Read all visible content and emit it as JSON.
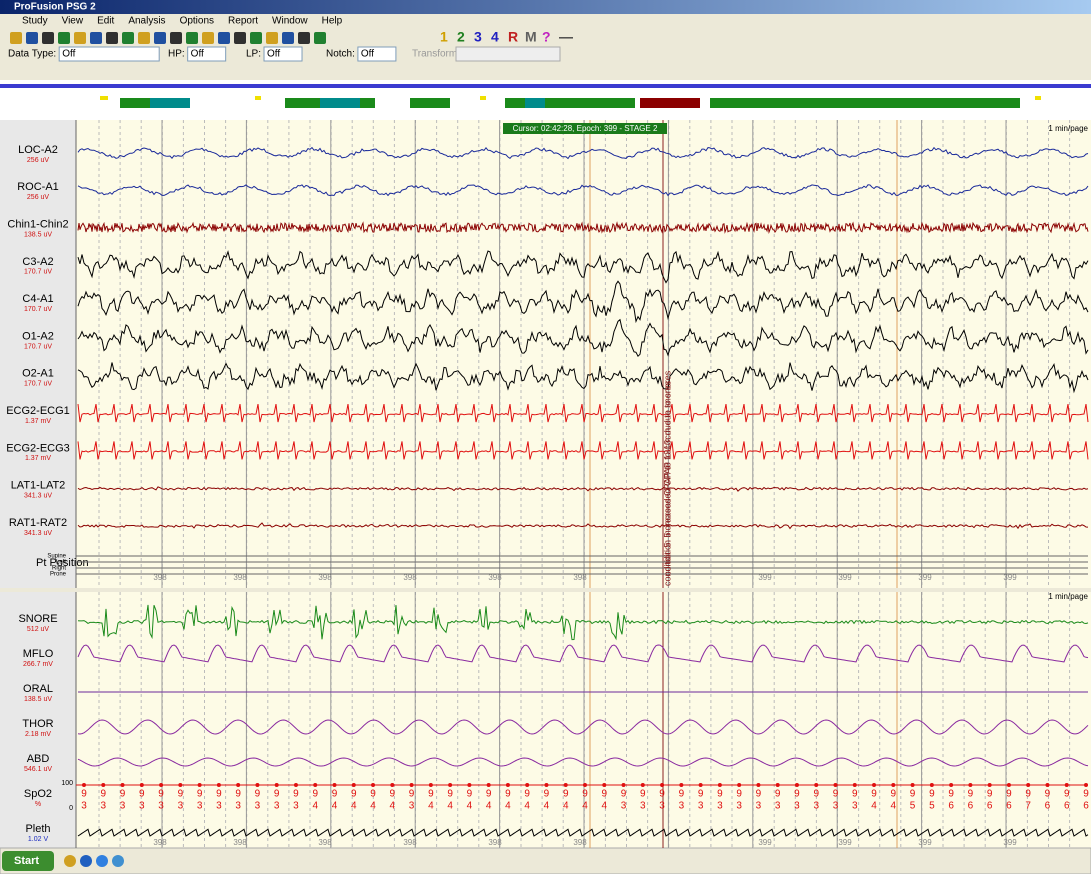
{
  "window": {
    "title": "ProFusion PSG 2",
    "menu": [
      "Study",
      "View",
      "Edit",
      "Analysis",
      "Options",
      "Report",
      "Window",
      "Help"
    ],
    "toolbar_labels": [
      "1",
      "2",
      "3",
      "4",
      "R",
      "M",
      "?",
      "—"
    ]
  },
  "filters": [
    {
      "label": "Data Type:",
      "value": "Off"
    },
    {
      "label": "HP:",
      "value": "Off"
    },
    {
      "label": "LP:",
      "value": "Off"
    },
    {
      "label": "Notch:",
      "value": "Off"
    }
  ],
  "transform_label": "Transform",
  "cursor_info": "Cursor: 02:42:28, Epoch: 399 - STAGE 2",
  "page_scale": "1 min/page",
  "annotation": "condition 5: increased CPAP to 13cm due to snores",
  "panels": [
    {
      "channels": [
        {
          "label": "LOC-A2",
          "scale": "256 uV"
        },
        {
          "label": "ROC-A1",
          "scale": "256 uV"
        },
        {
          "label": "Chin1-Chin2",
          "scale": "138.5 uV"
        },
        {
          "label": "C3-A2",
          "scale": "170.7 uV"
        },
        {
          "label": "C4-A1",
          "scale": "170.7 uV"
        },
        {
          "label": "O1-A2",
          "scale": "170.7 uV"
        },
        {
          "label": "O2-A1",
          "scale": "170.7 uV"
        },
        {
          "label": "ECG2-ECG1",
          "scale": "1.37 mV"
        },
        {
          "label": "ECG2-ECG3",
          "scale": "1.37 mV"
        },
        {
          "label": "LAT1-LAT2",
          "scale": "341.3 uV"
        },
        {
          "label": "RAT1-RAT2",
          "scale": "341.3 uV"
        }
      ],
      "pt_position": {
        "label": "Pt Position",
        "levels": [
          "Supine",
          "Left",
          "Right",
          "Prone"
        ]
      },
      "epoch_labels": [
        "398",
        "398",
        "398",
        "398",
        "398",
        "398",
        "399",
        "399",
        "399",
        "399"
      ]
    },
    {
      "channels": [
        {
          "label": "SNORE",
          "scale": "512 uV"
        },
        {
          "label": "MFLO",
          "scale": "266.7 mV"
        },
        {
          "label": "ORAL",
          "scale": "138.5 uV"
        },
        {
          "label": "THOR",
          "scale": "2.18 mV"
        },
        {
          "label": "ABD",
          "scale": "546.1 uV"
        },
        {
          "label": "SpO2",
          "scale": "%"
        },
        {
          "label": "Pleth",
          "scale": "1.02 V"
        }
      ],
      "epoch_labels": [
        "398",
        "398",
        "398",
        "398",
        "398",
        "398",
        "399",
        "399",
        "399",
        "399"
      ]
    }
  ],
  "spo2": {
    "axis_max": "100",
    "axis_min": "0",
    "tens": [
      "9",
      "9",
      "9",
      "9",
      "9",
      "9",
      "9",
      "9",
      "9",
      "9",
      "9",
      "9",
      "9",
      "9",
      "9",
      "9",
      "9",
      "9",
      "9",
      "9",
      "9",
      "9",
      "9",
      "9",
      "9",
      "9",
      "9",
      "9",
      "9",
      "9",
      "9",
      "9",
      "9",
      "9",
      "9",
      "9",
      "9",
      "9",
      "9",
      "9",
      "9",
      "9",
      "9",
      "9",
      "9",
      "9",
      "9",
      "9",
      "9",
      "9",
      "9",
      "9",
      "9"
    ],
    "units": [
      "3",
      "3",
      "3",
      "3",
      "3",
      "3",
      "3",
      "3",
      "3",
      "3",
      "3",
      "3",
      "4",
      "4",
      "4",
      "4",
      "4",
      "3",
      "4",
      "4",
      "4",
      "4",
      "4",
      "4",
      "4",
      "4",
      "4",
      "4",
      "3",
      "3",
      "3",
      "3",
      "3",
      "3",
      "3",
      "3",
      "3",
      "3",
      "3",
      "3",
      "3",
      "4",
      "4",
      "5",
      "5",
      "6",
      "6",
      "6",
      "6",
      "7",
      "6",
      "6",
      "6"
    ]
  },
  "taskbar": {
    "start": "Start"
  }
}
